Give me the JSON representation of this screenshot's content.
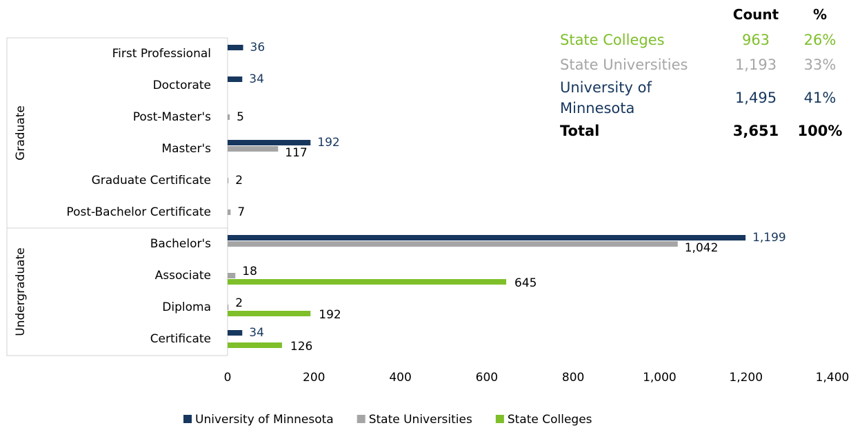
{
  "chart_data": {
    "type": "bar",
    "orientation": "horizontal",
    "categories": [
      "First Professional",
      "Doctorate",
      "Post-Master's",
      "Master's",
      "Graduate Certificate",
      "Post-Bachelor Certificate",
      "Bachelor's",
      "Associate",
      "Diploma",
      "Certificate"
    ],
    "groups": [
      {
        "name": "Graduate",
        "count": 6
      },
      {
        "name": "Undergraduate",
        "count": 4
      }
    ],
    "series": [
      {
        "name": "University of Minnesota",
        "color": "#17375e",
        "label_color": "#17375e",
        "values": [
          36,
          34,
          null,
          192,
          null,
          null,
          1199,
          null,
          null,
          34
        ],
        "value_labels": [
          "36",
          "34",
          null,
          "192",
          null,
          null,
          "1,199",
          null,
          null,
          "34"
        ]
      },
      {
        "name": "State Universities",
        "color": "#a5a5a5",
        "label_color": "#000000",
        "values": [
          null,
          null,
          5,
          117,
          2,
          7,
          1042,
          18,
          2,
          null
        ],
        "value_labels": [
          null,
          null,
          "5",
          "117",
          "2",
          "7",
          "1,042",
          "18",
          "2",
          null
        ]
      },
      {
        "name": "State Colleges",
        "color": "#7ebf2a",
        "label_color": "#000000",
        "values": [
          null,
          null,
          null,
          null,
          null,
          null,
          null,
          645,
          192,
          126
        ],
        "value_labels": [
          null,
          null,
          null,
          null,
          null,
          null,
          null,
          "645",
          "192",
          "126"
        ]
      }
    ],
    "xlim": [
      0,
      1400
    ],
    "xticks": [
      0,
      200,
      400,
      600,
      800,
      {
        "value": 1000,
        "label": "1,000"
      },
      {
        "value": 1200,
        "label": "1,200"
      },
      {
        "value": 1400,
        "label": "1,400"
      }
    ],
    "legend": "bottom",
    "summary_table": {
      "header": [
        "Count",
        "%"
      ],
      "rows": [
        {
          "color": "#7ebf2a",
          "cells": [
            "State Colleges",
            "963",
            "26%"
          ]
        },
        {
          "color": "#a6a6a6",
          "cells": [
            "State Universities",
            "1,193",
            "33%"
          ]
        },
        {
          "color": "#17375e",
          "cells": [
            "University of Minnesota",
            "1,495",
            "41%"
          ]
        },
        {
          "color": "#000000",
          "cells": [
            "Total",
            "3,651",
            "100%"
          ]
        }
      ]
    }
  }
}
